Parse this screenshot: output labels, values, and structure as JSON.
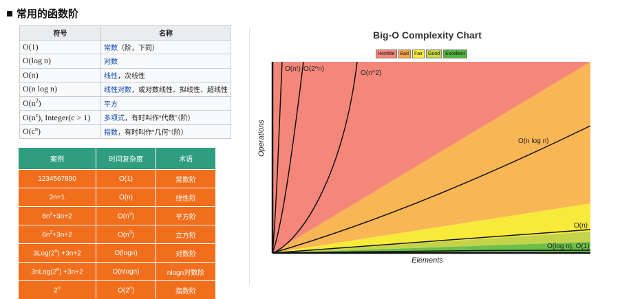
{
  "heading": "常用的函数阶",
  "top_fragment": "~~~~~~~",
  "table1": {
    "headers": [
      "符号",
      "名称"
    ],
    "rows": [
      {
        "symbol": "O(1)",
        "link": "常数",
        "rest": "（阶，下同）"
      },
      {
        "symbol": "O(log n)",
        "link": "对数",
        "rest": ""
      },
      {
        "symbol": "O(n)",
        "link": "线性",
        "rest": "，次线性"
      },
      {
        "symbol": "O(n log n)",
        "link": "线性对数",
        "rest": "，或对数线性、拟线性、超线性"
      },
      {
        "symbol": "O(n",
        "sup": "2",
        "symbol_after": ")",
        "link": "平方",
        "rest": ""
      },
      {
        "symbol": "O(n",
        "sup": "c",
        "symbol_after": "), Integer(c > 1)",
        "link": "多项式",
        "rest": "，有时叫作“代数”（阶）"
      },
      {
        "symbol": "O(c",
        "sup": "n",
        "symbol_after": ")",
        "link": "指数",
        "rest": "，有时叫作“几何”（阶）"
      }
    ]
  },
  "table2": {
    "headers": [
      "案例",
      "时间复杂度",
      "术语"
    ],
    "rows": [
      {
        "case": "1234567890",
        "case_sup": "",
        "case_after": "",
        "complexity": "O(1)",
        "cx_sup": "",
        "cx_after": "",
        "term": "常数阶"
      },
      {
        "case": "2n+1",
        "case_sup": "",
        "case_after": "",
        "complexity": "O(n)",
        "cx_sup": "",
        "cx_after": "",
        "term": "线性阶"
      },
      {
        "case": "6n",
        "case_sup": "2",
        "case_after": "+3n+2",
        "complexity": "O(n",
        "cx_sup": "2",
        "cx_after": ")",
        "term": "平方阶"
      },
      {
        "case": "6n",
        "case_sup": "3",
        "case_after": "+3n+2",
        "complexity": "O(n",
        "cx_sup": "3",
        "cx_after": ")",
        "term": "立方阶"
      },
      {
        "case": "3Log(2",
        "case_sup": "n",
        "case_after": ") +3n+2",
        "complexity": "O(logn)",
        "cx_sup": "",
        "cx_after": "",
        "term": "对数阶"
      },
      {
        "case": "3nLog(2",
        "case_sup": "n",
        "case_after": ") +3n+2",
        "complexity": "O(nlogn)",
        "cx_sup": "",
        "cx_after": "",
        "term": "nlogn对数阶"
      },
      {
        "case": "2",
        "case_sup": "n",
        "case_after": "",
        "complexity": "O(2",
        "cx_sup": "n",
        "cx_after": ")",
        "term": "指数阶"
      }
    ]
  },
  "chart": {
    "title": "Big-O Complexity Chart",
    "xlabel": "Elements",
    "ylabel": "Operations",
    "legend": [
      {
        "label": "Horrible",
        "color": "#f4877a"
      },
      {
        "label": "Bad",
        "color": "#f7a64b"
      },
      {
        "label": "Fair",
        "color": "#f7ea3a"
      },
      {
        "label": "Good",
        "color": "#c4d44a"
      },
      {
        "label": "Excellent",
        "color": "#55b640"
      }
    ],
    "curve_labels": [
      "O(n!)",
      "O(2^n)",
      "O(n^2)",
      "O(n log n)",
      "O(n)",
      "O(log n), O(1)"
    ]
  }
}
